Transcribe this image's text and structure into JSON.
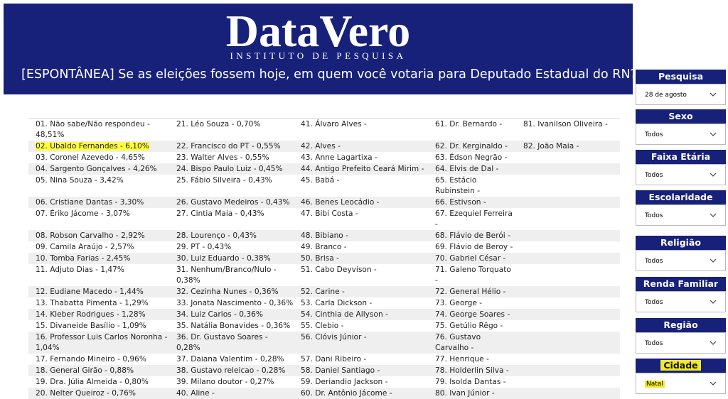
{
  "header": {
    "logo": "DataVero",
    "subtitle": "INSTITUTO DE PESQUISA",
    "question": "[ESPONTÂNEA] Se as eleições fossem hoje, em quem você votaria para Deputado Estadual do RN?"
  },
  "table": {
    "highlight": [
      1,
      0
    ],
    "rows": [
      [
        "01. Não sabe/Não respondeu - 48,51%",
        "21. Léo Souza - 0,70%",
        "41. Álvaro Alves -",
        "61. Dr. Bernardo -",
        "81. Ivanilson Oliveira -"
      ],
      [
        "02. Ubaldo Fernandes - 6,10%",
        "22. Francisco do PT - 0,55%",
        "42. Alves -",
        "62. Dr. Kerginaldo -",
        "82. João Maia -"
      ],
      [
        "03. Coronel Azevedo - 4,65%",
        "23. Walter Alves - 0,55%",
        "43. Anne Lagartixa -",
        "63. Édson Negrão -"
      ],
      [
        "04. Sargento Gonçalves - 4,26%",
        "24. Bispo Paulo Luiz - 0,45%",
        "44. Antigo Prefeito Ceará Mirim -",
        "64. Elvis de Dal -"
      ],
      [
        "05. Nina Souza - 3,42%",
        "25. Fábio Silveira - 0,43%",
        "45. Babá -",
        "65. Estácio Rubinstein -"
      ],
      [
        "06. Cristiane Dantas - 3,30%",
        "26. Gustavo Medeiros - 0,43%",
        "46. Benes Leocádio -",
        "66. Estivson -"
      ],
      [
        "07. Ériko Jácome - 3,07%",
        "27. Cintia Maia - 0,43%",
        "47. Bibi Costa -",
        "67. Ezequiel Ferreira -"
      ],
      [
        "08. Robson Carvalho - 2,92%",
        "28. Lourenço - 0,43%",
        "48. Bibiano -",
        "68. Flávio de Berói -"
      ],
      [
        "09. Camila Araújo - 2,57%",
        "29. PT - 0,43%",
        "49. Branco -",
        "69. Flávio de Beroy -"
      ],
      [
        "10. Tomba Farias - 2,45%",
        "30. Luiz Eduardo - 0,38%",
        "50. Brisa -",
        "70. Gabriel César -"
      ],
      [
        "11. Adjuto Dias - 1,47%",
        "31. Nenhum/Branco/Nulo - 0,38%",
        "51. Cabo Deyvison -",
        "71. Galeno Torquato -"
      ],
      [
        "12. Eudiane Macedo - 1,44%",
        "32. Cezinha Nunes - 0,36%",
        "52. Carine -",
        "72. General Hélio -"
      ],
      [
        "13. Thabatta Pimenta - 1,29%",
        "33. Jonata Nascimento - 0,36%",
        "53. Carla Dickson -",
        "73. George -"
      ],
      [
        "14. Kleber Rodrigues - 1,28%",
        "34. Luiz Carlos - 0,36%",
        "54. Cinthia de Allyson -",
        "74. George Soares -"
      ],
      [
        "15. Divaneide Basílio - 1,09%",
        "35. Natália Bonavides - 0,36%",
        "55. Clebio -",
        "75. Getúlio Rêgo -"
      ],
      [
        "16. Professor Luis Carlos Noronha - 1,04%",
        "36. Dr. Gustavo Soares - 0,28%",
        "56. Clóvis Júnior -",
        "76. Gustavo Carvalho -"
      ],
      [
        "17. Fernando Mineiro - 0,96%",
        "37. Daiana Valentim - 0,28%",
        "57. Dani Ribeiro -",
        "77. Henrique -"
      ],
      [
        "18. General Girão - 0,88%",
        "38. Gustavo releicao - 0,28%",
        "58. Daniel Santiago -",
        "78. Holderlin Silva -"
      ],
      [
        "19. Dra. Júlia Almeida - 0,80%",
        "39. Milano doutor - 0,27%",
        "59. Deriandio Jackson -",
        "79. Isolda Dantas -"
      ],
      [
        "20. Nelter Queiroz - 0,76%",
        "40. Aline -",
        "60. Dr. Antônio Jácome -",
        "80. Ivan Júnior -"
      ]
    ]
  },
  "slicers": [
    {
      "label": "Pesquisa",
      "value": "28 de agosto"
    },
    {
      "label": "Sexo",
      "value": "Todos"
    },
    {
      "label": "Faixa Etária",
      "value": "Todos"
    },
    {
      "label": "Escolaridade",
      "value": "Todos"
    },
    {
      "label": "Religião",
      "value": "Todos"
    },
    {
      "label": "Renda Familiar",
      "value": "Todos"
    },
    {
      "label": "Região",
      "value": "Todos"
    },
    {
      "label": "Cidade",
      "value": "Natal",
      "highlighted": true
    }
  ]
}
